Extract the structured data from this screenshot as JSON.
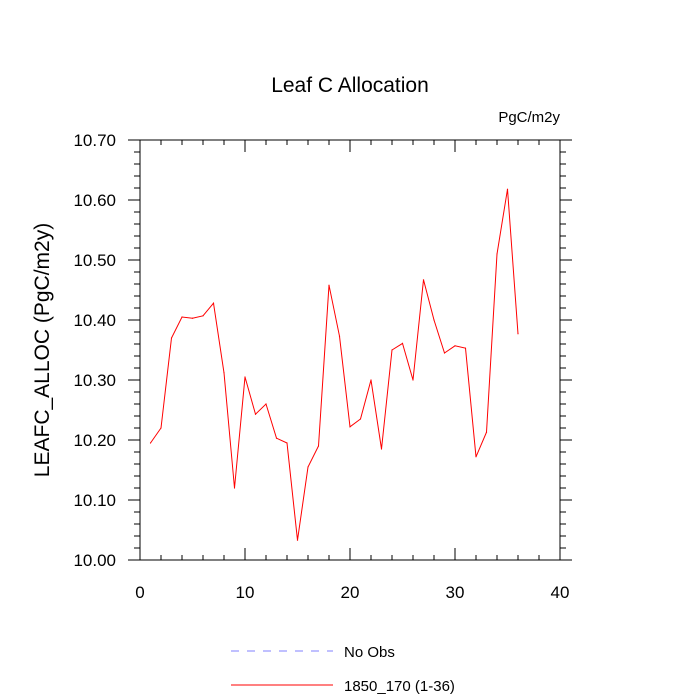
{
  "chart_data": {
    "type": "line",
    "title": "Leaf C Allocation",
    "units": "PgC/m2y",
    "ylabel": "LEAFC_ALLOC  (PgC/m2y)",
    "xlabel": "",
    "xlim": [
      0,
      40
    ],
    "ylim": [
      10.0,
      10.7
    ],
    "x_ticks": [
      0,
      10,
      20,
      30,
      40
    ],
    "y_ticks": [
      10.0,
      10.1,
      10.2,
      10.3,
      10.4,
      10.5,
      10.6,
      10.7
    ],
    "x_tick_labels": [
      "0",
      "10",
      "20",
      "30",
      "40"
    ],
    "y_tick_labels": [
      "10.00",
      "10.10",
      "10.20",
      "10.30",
      "10.40",
      "10.50",
      "10.60",
      "10.70"
    ],
    "grid": false,
    "legend_position": "bottom",
    "series": [
      {
        "name": "No Obs",
        "color": "#8080ff",
        "dash": true,
        "x": [],
        "values": []
      },
      {
        "name": "1850_170 (1-36)",
        "color": "#ff0000",
        "dash": false,
        "x": [
          1,
          2,
          3,
          4,
          5,
          6,
          7,
          8,
          9,
          10,
          11,
          12,
          13,
          14,
          15,
          16,
          17,
          18,
          19,
          20,
          21,
          22,
          23,
          24,
          25,
          26,
          27,
          28,
          29,
          30,
          31,
          32,
          33,
          34,
          35,
          36
        ],
        "values": [
          10.195,
          10.22,
          10.37,
          10.405,
          10.403,
          10.407,
          10.428,
          10.312,
          10.12,
          10.305,
          10.243,
          10.26,
          10.203,
          10.195,
          10.033,
          10.155,
          10.19,
          10.458,
          10.373,
          10.222,
          10.235,
          10.3,
          10.185,
          10.35,
          10.361,
          10.3,
          10.467,
          10.4,
          10.345,
          10.357,
          10.353,
          10.172,
          10.213,
          10.51,
          10.618,
          10.377
        ]
      }
    ]
  }
}
